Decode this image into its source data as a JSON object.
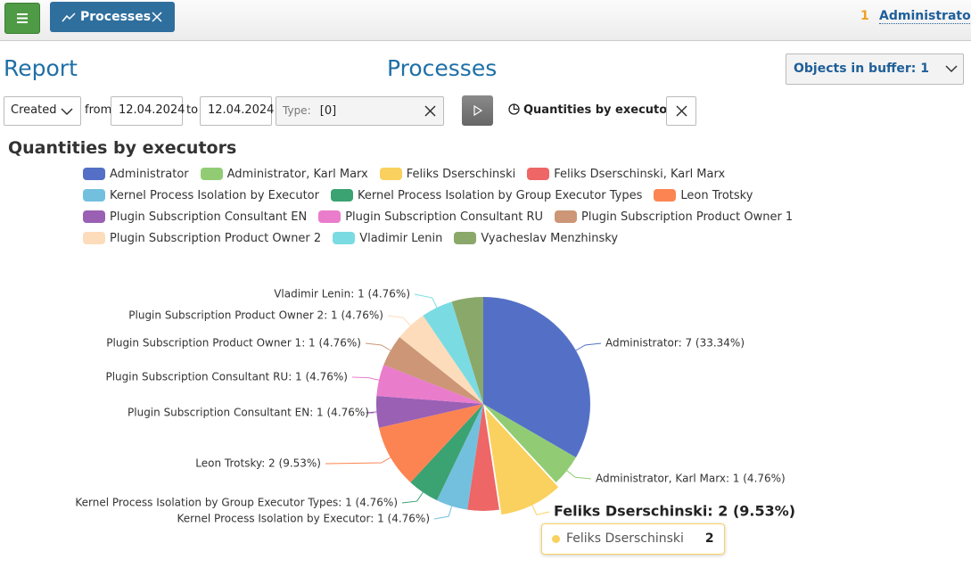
{
  "header": {
    "tab": "Processes",
    "badge": "1",
    "user": "Administrator"
  },
  "page": {
    "left_title": "Report",
    "title": "Processes",
    "buffer": "Objects in buffer: 1"
  },
  "filters": {
    "field": "Created",
    "from_label": "from",
    "from": "12.04.2024",
    "to_label": "to",
    "to": "12.04.2024",
    "type_label": "Type:",
    "type_value": "[0]",
    "report": "Quantities by executors"
  },
  "chart_data": {
    "type": "pie",
    "title": "Quantities by executors",
    "categories": [
      "Administrator",
      "Administrator, Karl Marx",
      "Feliks Dserschinski",
      "Feliks Dserschinski, Karl Marx",
      "Kernel Process Isolation by Executor",
      "Kernel Process Isolation by Group Executor Types",
      "Leon Trotsky",
      "Plugin Subscription Consultant EN",
      "Plugin Subscription Consultant RU",
      "Plugin Subscription Product Owner 1",
      "Plugin Subscription Product Owner 2",
      "Vladimir Lenin",
      "Vyacheslav Menzhinsky"
    ],
    "values": [
      7,
      1,
      2,
      1,
      1,
      1,
      2,
      1,
      1,
      1,
      1,
      1,
      1
    ],
    "value_labels": [
      "Administrator: 7 (33.34%)",
      "Administrator, Karl Marx: 1 (4.76%)",
      "Feliks Dserschinski: 2 (9.53%)",
      null,
      "Kernel Process Isolation by Executor: 1 (4.76%)",
      "Kernel Process Isolation by Group Executor Types: 1 (4.76%)",
      "Leon Trotsky: 2 (9.53%)",
      "Plugin Subscription Consultant EN: 1 (4.76%)",
      "Plugin Subscription Consultant RU: 1 (4.76%)",
      "Plugin Subscription Product Owner 1: 1 (4.76%)",
      "Plugin Subscription Product Owner 2: 1 (4.76%)",
      "Vladimir Lenin: 1 (4.76%)",
      null
    ],
    "colors": [
      "#5470c6",
      "#91cc75",
      "#fad15e",
      "#ee6666",
      "#73c0de",
      "#3ba272",
      "#fc8452",
      "#9a60b4",
      "#ea7ccc",
      "#cc9677",
      "#fddcbb",
      "#7bdbe3",
      "#8aa86a"
    ],
    "legend": "top",
    "highlight": 2
  }
}
